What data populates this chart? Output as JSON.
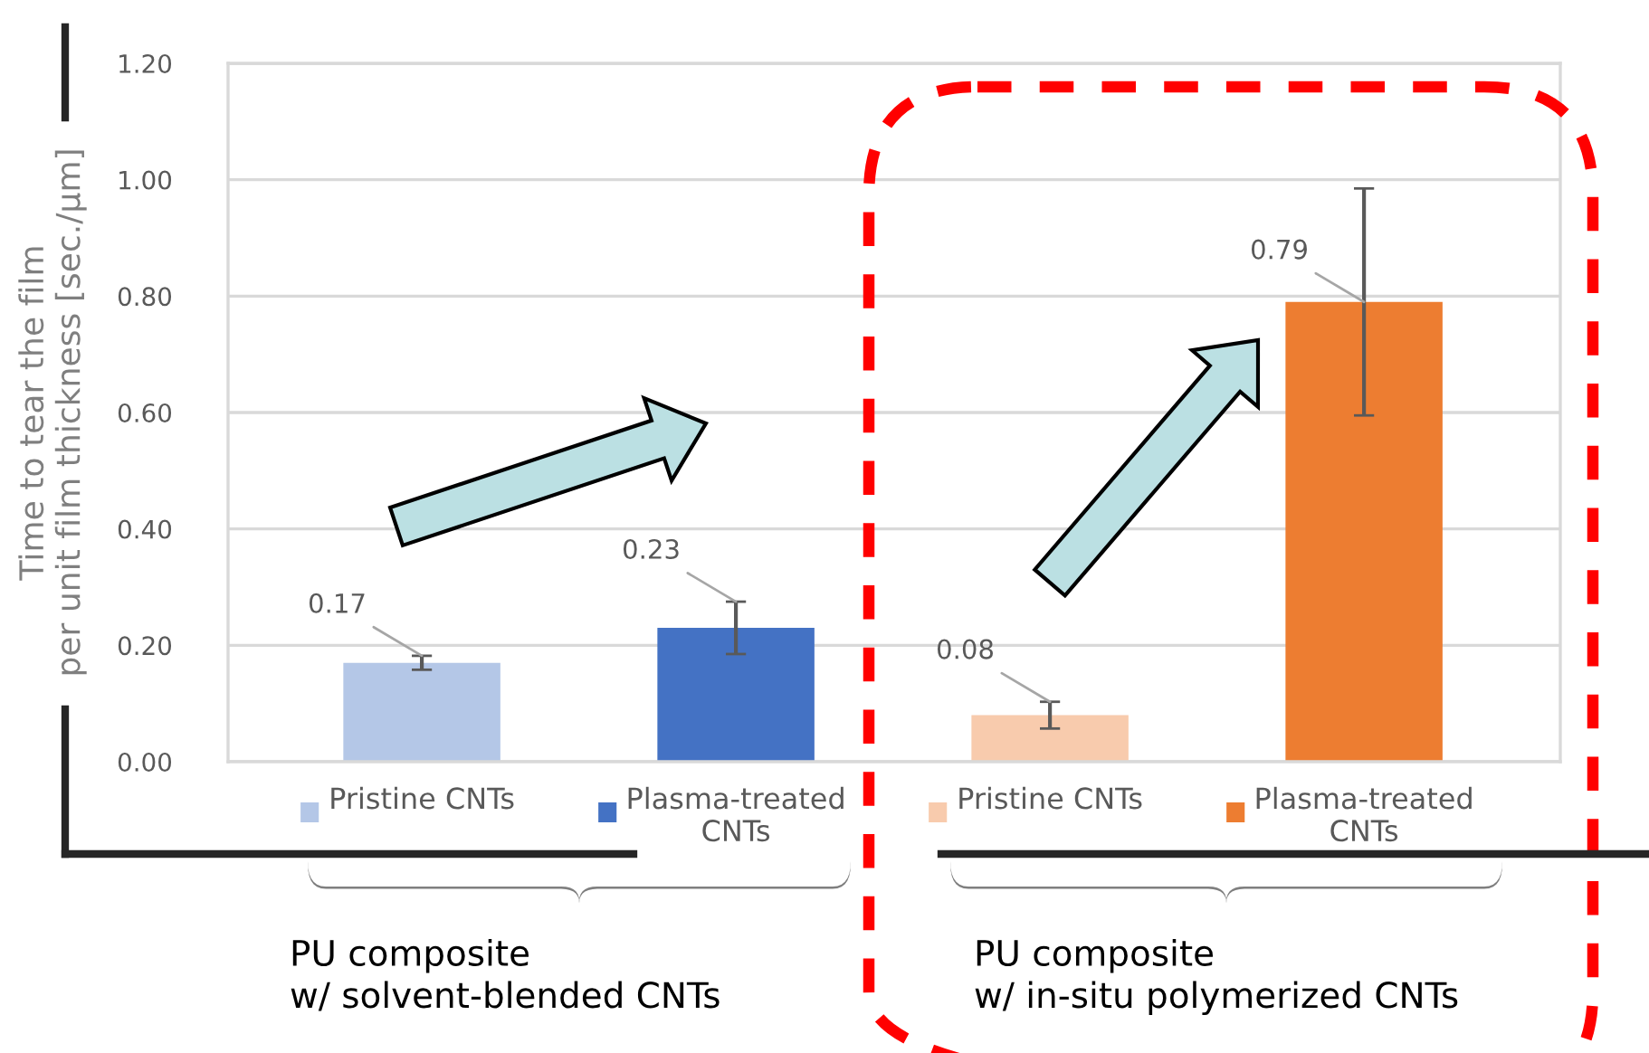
{
  "chart_data": {
    "type": "bar",
    "ylabel": "Time to tear the film\nper unit film thickness [sec./μm]",
    "categories": [
      "Pristine CNTs",
      "Plasma-treated\nCNTs",
      "Pristine CNTs",
      "Plasma-treated\nCNTs"
    ],
    "values": [
      0.17,
      0.23,
      0.08,
      0.79
    ],
    "errors": [
      0.012,
      0.045,
      0.023,
      0.195
    ],
    "colors": [
      "#b4c7e7",
      "#4472c4",
      "#f8cbad",
      "#ed7d31"
    ],
    "data_labels": true,
    "ylim": [
      0,
      1.2
    ],
    "yticks": [
      {
        "value": 0,
        "label": "0.00"
      },
      {
        "value": 0.2,
        "label": "0.20"
      },
      {
        "value": 0.4,
        "label": "0.40"
      },
      {
        "value": 0.6,
        "label": "0.60"
      },
      {
        "value": 0.8,
        "label": "0.80"
      },
      {
        "value": 1.0,
        "label": "1.00"
      },
      {
        "value": 1.2,
        "label": "1.20"
      }
    ],
    "grid": "y",
    "annotations": [
      "PU composite\nw/ solvent-blended CNTs",
      "PU composite\nw/ in-situ polymerized CNTs"
    ]
  }
}
